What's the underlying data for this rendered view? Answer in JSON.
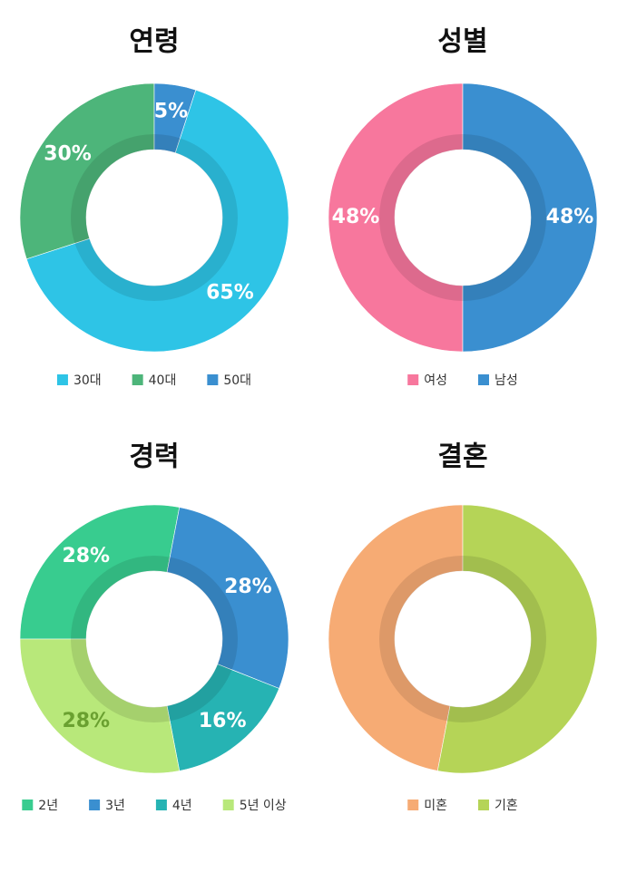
{
  "chart_data": [
    {
      "type": "pie",
      "title": "연령",
      "categories": [
        "30대",
        "40대",
        "50대"
      ],
      "values": [
        65,
        30,
        5
      ],
      "value_labels": [
        "65%",
        "30%",
        "5%"
      ],
      "colors": [
        "#2ec4e6",
        "#4db57a",
        "#3a8fd0"
      ]
    },
    {
      "type": "pie",
      "title": "성별",
      "categories": [
        "여성",
        "남성"
      ],
      "values": [
        48,
        48
      ],
      "value_labels": [
        "48%",
        "48%"
      ],
      "colors": [
        "#f7779d",
        "#3a8fd0"
      ]
    },
    {
      "type": "pie",
      "title": "경력",
      "categories": [
        "2년",
        "3년",
        "4년",
        "5년 이상"
      ],
      "values": [
        28,
        28,
        16,
        28
      ],
      "value_labels": [
        "28%",
        "28%",
        "16%",
        "28%"
      ],
      "colors": [
        "#38cc8f",
        "#3a8fd0",
        "#26b3b3",
        "#b8e87a"
      ]
    },
    {
      "type": "pie",
      "title": "결혼",
      "categories": [
        "미혼",
        "기혼"
      ],
      "values": [
        47,
        53
      ],
      "colors": [
        "#f6ab74",
        "#b5d457"
      ]
    }
  ]
}
